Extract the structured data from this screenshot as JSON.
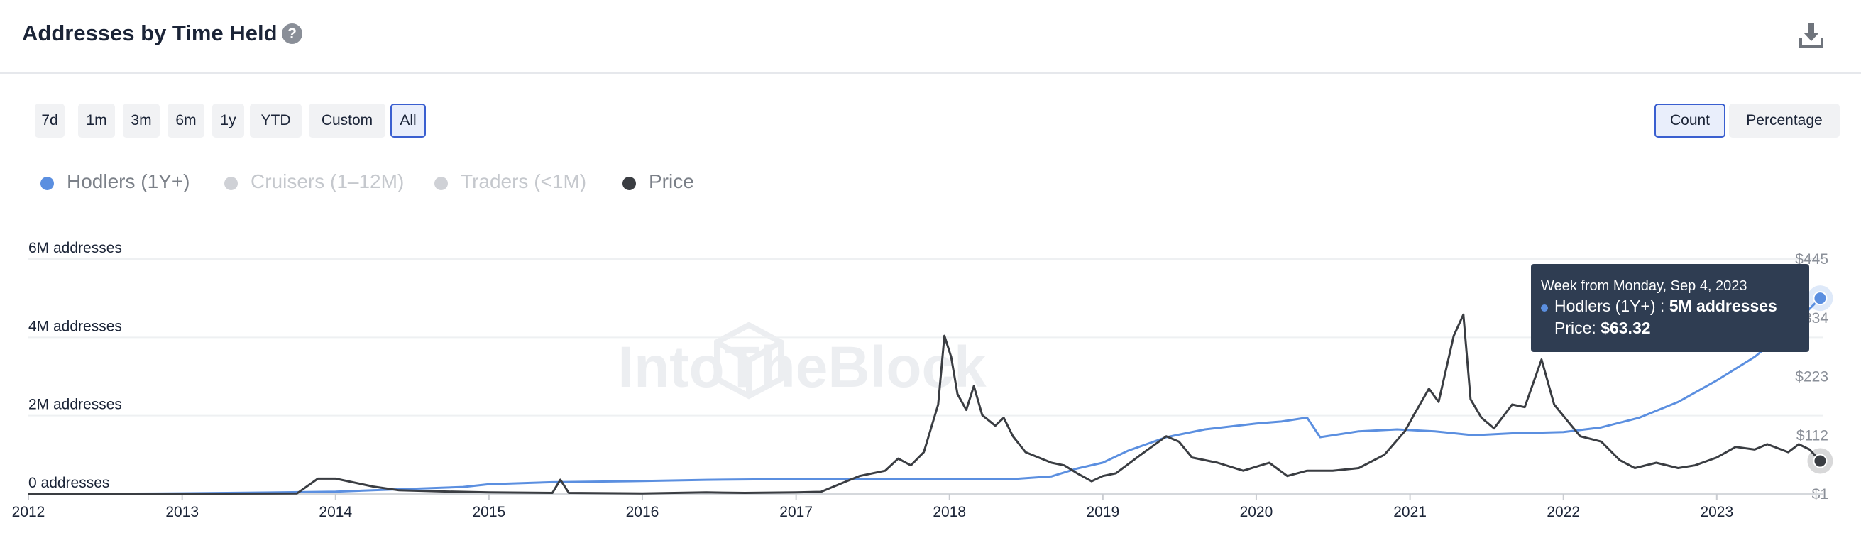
{
  "header": {
    "title": "Addresses by Time Held",
    "help_icon": "?",
    "download_icon": "download-icon"
  },
  "range_buttons": [
    {
      "label": "7d",
      "active": false
    },
    {
      "label": "1m",
      "active": false
    },
    {
      "label": "3m",
      "active": false
    },
    {
      "label": "6m",
      "active": false
    },
    {
      "label": "1y",
      "active": false
    },
    {
      "label": "YTD",
      "active": false
    },
    {
      "label": "Custom",
      "active": false
    },
    {
      "label": "All",
      "active": true
    }
  ],
  "mode_buttons": [
    {
      "label": "Count",
      "active": true
    },
    {
      "label": "Percentage",
      "active": false
    }
  ],
  "legend": [
    {
      "label": "Hodlers (1Y+)",
      "color": "#5b8fe0",
      "enabled": true
    },
    {
      "label": "Cruisers (1–12M)",
      "color": "#cfd1d6",
      "enabled": false
    },
    {
      "label": "Traders (<1M)",
      "color": "#cfd1d6",
      "enabled": false
    },
    {
      "label": "Price",
      "color": "#3a3d42",
      "enabled": true
    }
  ],
  "tooltip": {
    "title": "Week from Monday, Sep 4, 2023",
    "series_label": "Hodlers (1Y+) : ",
    "series_value": "5M addresses",
    "price_label": "Price: ",
    "price_value": "$63.32"
  },
  "watermark": "IntoTheBlock",
  "chart_data": {
    "type": "line",
    "x_range": [
      "2012-01-01",
      "2023-09-04"
    ],
    "x_ticks": [
      "2012",
      "2013",
      "2014",
      "2015",
      "2016",
      "2017",
      "2018",
      "2019",
      "2020",
      "2021",
      "2022",
      "2023"
    ],
    "y_left": {
      "ticks": [
        "0 addresses",
        "2M addresses",
        "4M addresses",
        "6M addresses"
      ],
      "values": [
        0,
        2000000,
        4000000,
        6000000
      ],
      "range": [
        0,
        6000000
      ]
    },
    "y_right": {
      "ticks": [
        "$1",
        "$112",
        "$223",
        "$334",
        "$445"
      ],
      "values": [
        1,
        112,
        223,
        334,
        445
      ],
      "range": [
        1,
        445
      ]
    },
    "grid": true,
    "legend_position": "top-left",
    "series": [
      {
        "name": "Hodlers (1Y+)",
        "axis": "left",
        "color": "#5b8fe0",
        "points": [
          [
            "2012-01-01",
            0
          ],
          [
            "2012-11-01",
            10000
          ],
          [
            "2013-06-01",
            30000
          ],
          [
            "2014-01-01",
            60000
          ],
          [
            "2014-06-01",
            120000
          ],
          [
            "2014-11-01",
            180000
          ],
          [
            "2015-01-01",
            250000
          ],
          [
            "2015-06-01",
            300000
          ],
          [
            "2016-01-01",
            330000
          ],
          [
            "2016-06-01",
            360000
          ],
          [
            "2017-01-01",
            380000
          ],
          [
            "2017-06-01",
            390000
          ],
          [
            "2018-01-01",
            380000
          ],
          [
            "2018-06-01",
            380000
          ],
          [
            "2018-09-01",
            450000
          ],
          [
            "2018-11-01",
            650000
          ],
          [
            "2019-01-01",
            800000
          ],
          [
            "2019-03-01",
            1100000
          ],
          [
            "2019-06-01",
            1450000
          ],
          [
            "2019-09-01",
            1650000
          ],
          [
            "2020-01-01",
            1800000
          ],
          [
            "2020-03-01",
            1850000
          ],
          [
            "2020-05-01",
            1950000
          ],
          [
            "2020-06-01",
            1450000
          ],
          [
            "2020-09-01",
            1600000
          ],
          [
            "2020-12-01",
            1650000
          ],
          [
            "2021-03-01",
            1600000
          ],
          [
            "2021-06-01",
            1500000
          ],
          [
            "2021-09-01",
            1550000
          ],
          [
            "2022-01-01",
            1580000
          ],
          [
            "2022-04-01",
            1700000
          ],
          [
            "2022-07-01",
            1950000
          ],
          [
            "2022-10-01",
            2350000
          ],
          [
            "2023-01-01",
            2900000
          ],
          [
            "2023-04-01",
            3500000
          ],
          [
            "2023-07-01",
            4300000
          ],
          [
            "2023-09-04",
            5000000
          ]
        ]
      },
      {
        "name": "Price",
        "axis": "right",
        "color": "#3a3d42",
        "points": [
          [
            "2012-01-01",
            1
          ],
          [
            "2013-10-01",
            2
          ],
          [
            "2013-11-20",
            30
          ],
          [
            "2014-01-01",
            30
          ],
          [
            "2014-04-01",
            15
          ],
          [
            "2014-06-01",
            8
          ],
          [
            "2014-09-01",
            6
          ],
          [
            "2015-01-01",
            4
          ],
          [
            "2015-06-01",
            3
          ],
          [
            "2015-06-20",
            28
          ],
          [
            "2015-07-10",
            3
          ],
          [
            "2016-01-01",
            2
          ],
          [
            "2016-06-01",
            4
          ],
          [
            "2016-09-01",
            3
          ],
          [
            "2017-01-01",
            4
          ],
          [
            "2017-03-01",
            5
          ],
          [
            "2017-05-01",
            25
          ],
          [
            "2017-06-01",
            35
          ],
          [
            "2017-08-01",
            45
          ],
          [
            "2017-09-01",
            68
          ],
          [
            "2017-10-01",
            55
          ],
          [
            "2017-11-01",
            80
          ],
          [
            "2017-12-05",
            170
          ],
          [
            "2017-12-20",
            300
          ],
          [
            "2018-01-05",
            260
          ],
          [
            "2018-01-20",
            190
          ],
          [
            "2018-02-10",
            160
          ],
          [
            "2018-02-28",
            205
          ],
          [
            "2018-03-20",
            150
          ],
          [
            "2018-04-20",
            130
          ],
          [
            "2018-05-10",
            145
          ],
          [
            "2018-06-01",
            110
          ],
          [
            "2018-07-01",
            80
          ],
          [
            "2018-08-01",
            70
          ],
          [
            "2018-09-01",
            60
          ],
          [
            "2018-10-01",
            55
          ],
          [
            "2018-11-01",
            40
          ],
          [
            "2018-12-05",
            25
          ],
          [
            "2019-01-01",
            35
          ],
          [
            "2019-02-01",
            40
          ],
          [
            "2019-04-01",
            75
          ],
          [
            "2019-06-01",
            110
          ],
          [
            "2019-07-01",
            100
          ],
          [
            "2019-08-01",
            70
          ],
          [
            "2019-10-01",
            60
          ],
          [
            "2019-12-01",
            45
          ],
          [
            "2020-02-01",
            60
          ],
          [
            "2020-03-15",
            35
          ],
          [
            "2020-05-01",
            45
          ],
          [
            "2020-07-01",
            45
          ],
          [
            "2020-09-01",
            50
          ],
          [
            "2020-11-01",
            75
          ],
          [
            "2020-12-20",
            120
          ],
          [
            "2021-01-10",
            150
          ],
          [
            "2021-02-15",
            200
          ],
          [
            "2021-03-10",
            175
          ],
          [
            "2021-04-15",
            300
          ],
          [
            "2021-05-08",
            340
          ],
          [
            "2021-05-25",
            180
          ],
          [
            "2021-06-20",
            145
          ],
          [
            "2021-07-20",
            125
          ],
          [
            "2021-09-01",
            170
          ],
          [
            "2021-10-01",
            165
          ],
          [
            "2021-11-10",
            255
          ],
          [
            "2021-12-10",
            170
          ],
          [
            "2022-01-10",
            140
          ],
          [
            "2022-02-10",
            110
          ],
          [
            "2022-04-01",
            100
          ],
          [
            "2022-05-15",
            65
          ],
          [
            "2022-06-20",
            50
          ],
          [
            "2022-08-10",
            60
          ],
          [
            "2022-10-01",
            50
          ],
          [
            "2022-11-10",
            55
          ],
          [
            "2023-01-01",
            70
          ],
          [
            "2023-02-15",
            90
          ],
          [
            "2023-04-01",
            85
          ],
          [
            "2023-05-01",
            95
          ],
          [
            "2023-06-20",
            80
          ],
          [
            "2023-07-15",
            95
          ],
          [
            "2023-08-10",
            85
          ],
          [
            "2023-09-04",
            63.32
          ]
        ]
      }
    ]
  }
}
